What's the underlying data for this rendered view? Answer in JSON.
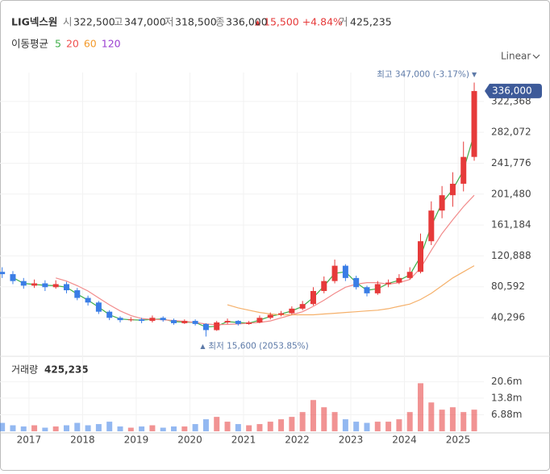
{
  "header": {
    "title": "LIG넥스원",
    "quotes": [
      {
        "label": "시",
        "value": "322,500"
      },
      {
        "label": "고",
        "value": "347,000"
      },
      {
        "label": "저",
        "value": "318,500"
      },
      {
        "label": "종",
        "value": "336,000"
      }
    ],
    "change": "15,500 +4.84%",
    "volume_label": "거",
    "volume": "425,235",
    "ma_label": "이동평균",
    "ma_periods": [
      {
        "label": "5",
        "color": "#3fae49"
      },
      {
        "label": "20",
        "color": "#f0504f"
      },
      {
        "label": "60",
        "color": "#f39a2b"
      },
      {
        "label": "120",
        "color": "#9b3fd1"
      }
    ],
    "scale": "Linear"
  },
  "chart_data": [
    {
      "type": "candlestick",
      "x": [
        2016.5,
        2016.7,
        2016.9,
        2017.1,
        2017.3,
        2017.5,
        2017.7,
        2017.9,
        2018.1,
        2018.3,
        2018.5,
        2018.7,
        2018.9,
        2019.1,
        2019.3,
        2019.5,
        2019.7,
        2019.9,
        2020.1,
        2020.3,
        2020.5,
        2020.7,
        2020.9,
        2021.1,
        2021.3,
        2021.5,
        2021.7,
        2021.9,
        2022.1,
        2022.3,
        2022.5,
        2022.7,
        2022.9,
        2023.1,
        2023.3,
        2023.5,
        2023.7,
        2023.9,
        2024.1,
        2024.3,
        2024.5,
        2024.7,
        2024.9,
        2025.1,
        2025.3
      ],
      "open": [
        100000,
        97000,
        88000,
        82000,
        85000,
        80000,
        84000,
        76000,
        66000,
        60000,
        48000,
        40000,
        37000,
        38000,
        36000,
        40000,
        37000,
        33000,
        36000,
        32000,
        24000,
        34000,
        36000,
        32000,
        34000,
        40000,
        44000,
        46000,
        52000,
        58000,
        75000,
        88000,
        108000,
        92000,
        80000,
        72000,
        84000,
        86000,
        92000,
        100000,
        140000,
        180000,
        200000,
        215000,
        250000
      ],
      "high": [
        106000,
        101000,
        92000,
        90000,
        89000,
        89000,
        87000,
        79000,
        69000,
        62000,
        50000,
        42000,
        41000,
        40000,
        43000,
        42000,
        39000,
        38000,
        38000,
        33000,
        36000,
        39000,
        37000,
        36000,
        43000,
        47000,
        49000,
        55000,
        62000,
        80000,
        94000,
        116000,
        110000,
        95000,
        82000,
        88000,
        90000,
        97000,
        106000,
        150000,
        192000,
        212000,
        230000,
        270000,
        347000
      ],
      "low": [
        92000,
        84000,
        78000,
        79000,
        75000,
        78000,
        72000,
        63000,
        56000,
        45000,
        37000,
        34000,
        35000,
        33000,
        34000,
        35000,
        31000,
        32000,
        30000,
        15600,
        23000,
        32000,
        30000,
        31000,
        33000,
        38000,
        42000,
        44000,
        50000,
        56000,
        72000,
        85000,
        88000,
        77000,
        68000,
        70000,
        80000,
        84000,
        90000,
        98000,
        135000,
        170000,
        185000,
        205000,
        245000
      ],
      "close": [
        97000,
        88000,
        82000,
        85000,
        80000,
        84000,
        76000,
        66000,
        60000,
        48000,
        40000,
        37000,
        38000,
        36000,
        40000,
        37000,
        33000,
        36000,
        32000,
        24000,
        34000,
        36000,
        32000,
        34000,
        40000,
        44000,
        46000,
        52000,
        58000,
        75000,
        88000,
        108000,
        92000,
        80000,
        72000,
        84000,
        86000,
        92000,
        100000,
        140000,
        180000,
        200000,
        215000,
        250000,
        336000
      ],
      "up_color": "#e63a3a",
      "down_color": "#3a7de6",
      "series": [
        {
          "color": "#3fae49",
          "values": [
            null,
            92500,
            85000,
            83500,
            82500,
            82000,
            80000,
            71000,
            63000,
            54000,
            44000,
            38500,
            37500,
            37000,
            38000,
            38500,
            35000,
            34500,
            34000,
            28000,
            29000,
            35000,
            34000,
            33000,
            37000,
            42000,
            45000,
            49000,
            55000,
            66500,
            81500,
            98000,
            100000,
            86000,
            76000,
            78000,
            85000,
            89000,
            96000,
            120000,
            160000,
            190000,
            207500,
            232500,
            280000
          ]
        },
        {
          "color": "#f28b8b",
          "values": [
            null,
            null,
            null,
            null,
            null,
            92000,
            88000,
            82000,
            75000,
            66000,
            57000,
            49000,
            43000,
            39000,
            38000,
            37500,
            36500,
            35500,
            34000,
            32000,
            31000,
            31500,
            32000,
            33000,
            34000,
            36000,
            40000,
            44000,
            48000,
            55000,
            63000,
            72000,
            80000,
            84000,
            86000,
            86000,
            84000,
            86000,
            90000,
            105000,
            128000,
            150000,
            168000,
            185000,
            200000
          ]
        },
        {
          "color": "#f5b06a",
          "values": [
            null,
            null,
            null,
            null,
            null,
            null,
            null,
            null,
            null,
            null,
            null,
            null,
            null,
            null,
            null,
            null,
            null,
            null,
            null,
            null,
            null,
            57000,
            53000,
            50000,
            47000,
            45000,
            44000,
            44000,
            44000,
            44000,
            45000,
            46000,
            47000,
            48000,
            49000,
            50000,
            52000,
            55000,
            58000,
            64000,
            72000,
            82000,
            92000,
            100000,
            108000
          ]
        }
      ],
      "xlim": [
        2016.46,
        2025.48
      ],
      "xticks": [
        2017,
        2018,
        2019,
        2020,
        2021,
        2022,
        2023,
        2024,
        2025
      ],
      "ylim": [
        -8100,
        360100
      ],
      "yticks": [
        {
          "value": 40296,
          "label": "40,296"
        },
        {
          "value": 80592,
          "label": "80,592"
        },
        {
          "value": 120888,
          "label": "120,888"
        },
        {
          "value": 161184,
          "label": "161,184"
        },
        {
          "value": 201480,
          "label": "201,480"
        },
        {
          "value": 241776,
          "label": "241,776"
        },
        {
          "value": 282072,
          "label": "282,072"
        },
        {
          "value": 322368,
          "label": "322,368"
        }
      ],
      "current_label": "336,000",
      "annotations": {
        "high": "최고 347,000 (-3.17%)",
        "low": "최저 15,600 (2053.85%)"
      },
      "grid": true
    },
    {
      "type": "bar",
      "title": "거래량",
      "title_value": "425,235",
      "values": [
        3500000,
        2500000,
        2000000,
        2500000,
        1500000,
        2000000,
        2500000,
        3500000,
        2500000,
        3000000,
        4000000,
        2000000,
        1500000,
        2000000,
        2500000,
        1500000,
        2000000,
        2000000,
        3000000,
        5000000,
        6000000,
        4000000,
        3000000,
        2500000,
        3000000,
        4000000,
        5000000,
        6000000,
        8000000,
        13000000,
        10000000,
        8000000,
        5000000,
        4000000,
        3500000,
        4000000,
        4000000,
        5000000,
        8000000,
        20000000,
        12000000,
        9000000,
        10000000,
        8000000,
        9000000
      ],
      "ylim": [
        0,
        30200000
      ],
      "yticks": [
        {
          "value": 6880000,
          "label": "6.88m"
        },
        {
          "value": 13800000,
          "label": "13.8m"
        },
        {
          "value": 20600000,
          "label": "20.6m"
        }
      ]
    }
  ]
}
